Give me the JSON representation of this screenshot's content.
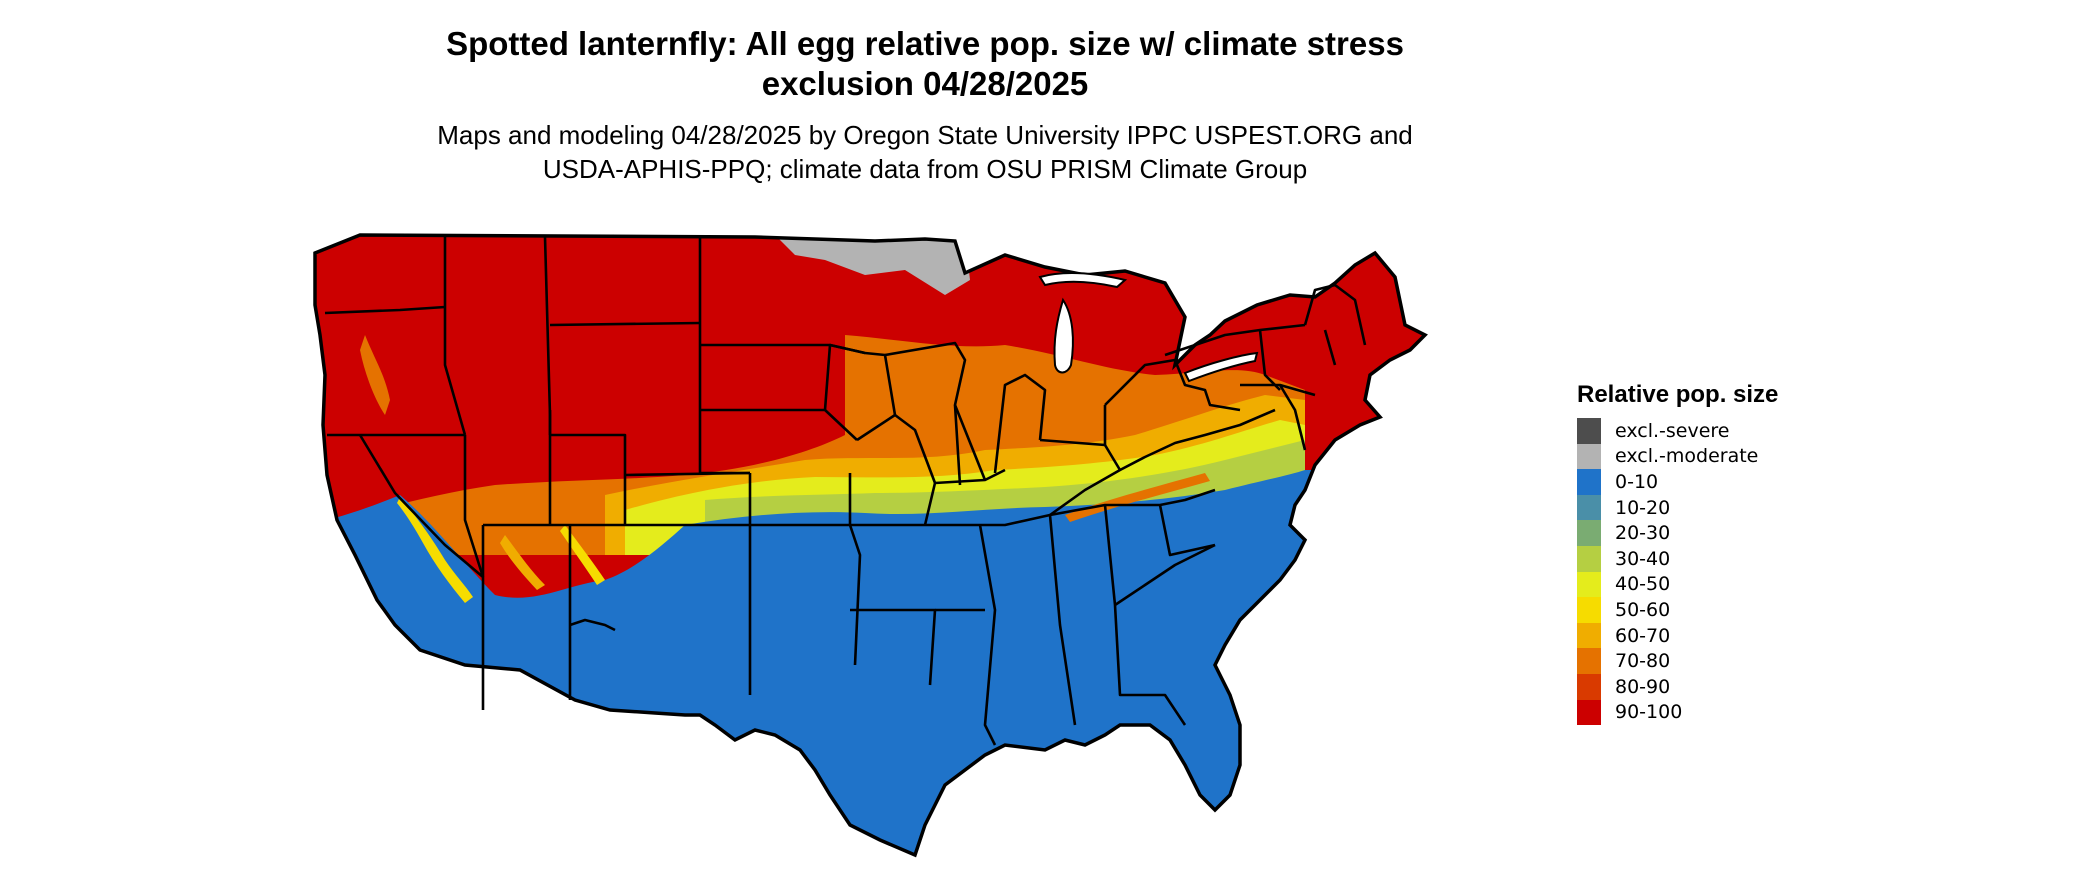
{
  "title": {
    "line1": "Spotted lanternfly: All egg relative pop. size w/ climate stress",
    "line2": "exclusion 04/28/2025"
  },
  "subtitle": {
    "line1": "Maps and modeling 04/28/2025 by Oregon State University IPPC USPEST.ORG and",
    "line2": "USDA-APHIS-PPQ; climate data from OSU PRISM Climate Group"
  },
  "legend": {
    "title": "Relative pop. size",
    "items": [
      {
        "label": "excl.-severe",
        "color": "#4d4d4d"
      },
      {
        "label": "excl.-moderate",
        "color": "#b3b3b3"
      },
      {
        "label": "0-10",
        "color": "#1f73c9"
      },
      {
        "label": "10-20",
        "color": "#4a8fa8"
      },
      {
        "label": "20-30",
        "color": "#7aac72"
      },
      {
        "label": "30-40",
        "color": "#b5cf42"
      },
      {
        "label": "40-50",
        "color": "#e4ec1c"
      },
      {
        "label": "50-60",
        "color": "#f6dc00"
      },
      {
        "label": "60-70",
        "color": "#f0ad00"
      },
      {
        "label": "70-80",
        "color": "#e57200"
      },
      {
        "label": "80-90",
        "color": "#d93a00"
      },
      {
        "label": "90-100",
        "color": "#cc0000"
      }
    ]
  },
  "map": {
    "region": "contiguous United States",
    "layers": {
      "north_band": "#cc0000",
      "transition_orange": "#f0ad00",
      "transition_yellow": "#e4ec1c",
      "transition_green": "#b5cf42",
      "south_band": "#1f73c9",
      "exclusion_moderate": "#b3b3b3",
      "border_color": "#000000"
    }
  }
}
